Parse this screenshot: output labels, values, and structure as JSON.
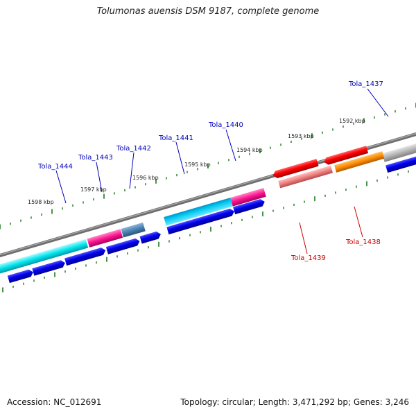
{
  "title": "Tolumonas auensis DSM 9187, complete genome",
  "footer": {
    "accession": "Accession: NC_012691",
    "summary": "Topology: circular; Length: 3,471,292 bp; Genes: 3,246"
  },
  "scale_labels": [
    "1598 kbp",
    "1597 kbp",
    "1596 kbp",
    "1595 kbp",
    "1594 kbp",
    "1593 kbp",
    "1592 kbp"
  ],
  "gene_labels": [
    {
      "name": "Tola_1444",
      "color": "#0000bb"
    },
    {
      "name": "Tola_1443",
      "color": "#0000bb"
    },
    {
      "name": "Tola_1442",
      "color": "#0000bb"
    },
    {
      "name": "Tola_1441",
      "color": "#0000bb"
    },
    {
      "name": "Tola_1440",
      "color": "#0000bb"
    },
    {
      "name": "Tola_1437",
      "color": "#0000bb"
    },
    {
      "name": "Tola_1439",
      "color": "#cc0000"
    },
    {
      "name": "Tola_1438",
      "color": "#cc0000"
    }
  ],
  "colors": {
    "backbone": "#7a7a7a",
    "tick": "#1a7a1a",
    "cds_forward": "#0000ee",
    "cds_reverse": "#ff0000",
    "cyan_feature": "#00e5ee",
    "magenta_feature": "#ff1493",
    "steelblue_feature": "#4a82b4",
    "pink_feature": "#f08080",
    "orange_feature": "#ff8c00",
    "gray_feature": "#b4b4b4"
  }
}
